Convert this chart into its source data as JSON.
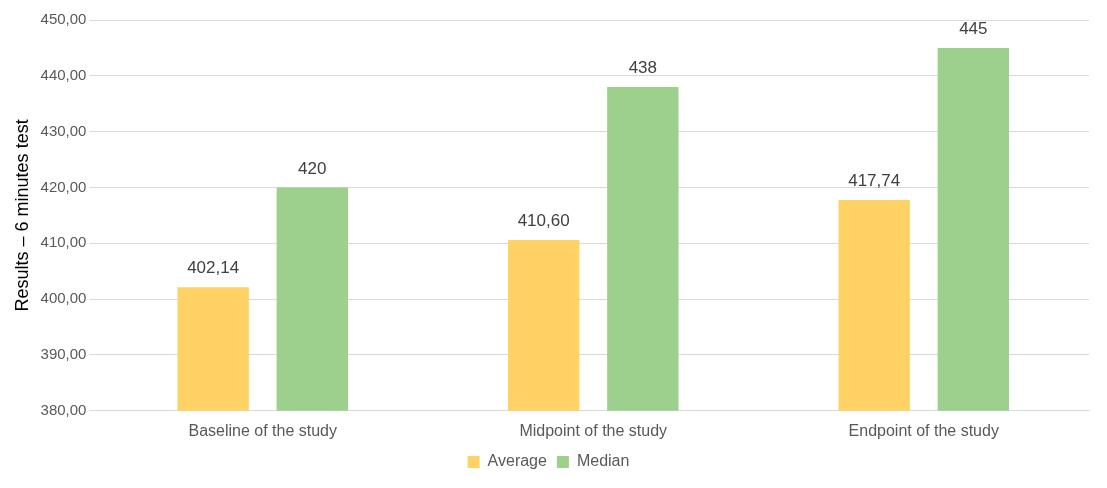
{
  "chart_data": {
    "type": "bar",
    "ylabel": "Results – 6 minutes test",
    "categories": [
      "Baseline of the study",
      "Midpoint of the study",
      "Endpoint of the study"
    ],
    "series": [
      {
        "name": "Average",
        "color": "#ffd265",
        "values": [
          402.14,
          410.6,
          417.74
        ],
        "value_labels": [
          "402,14",
          "410,60",
          "417,74"
        ]
      },
      {
        "name": "Median",
        "color": "#9dd08c",
        "values": [
          420,
          438,
          445
        ],
        "value_labels": [
          "420",
          "438",
          "445"
        ]
      }
    ],
    "ylim": [
      380,
      450
    ],
    "yticks": [
      {
        "value": 380,
        "label": "380,00"
      },
      {
        "value": 390,
        "label": "390,00"
      },
      {
        "value": 400,
        "label": "400,00"
      },
      {
        "value": 410,
        "label": "410,00"
      },
      {
        "value": 420,
        "label": "420,00"
      },
      {
        "value": 430,
        "label": "430,00"
      },
      {
        "value": 440,
        "label": "440,00"
      },
      {
        "value": 450,
        "label": "450,00"
      }
    ],
    "grid": "y",
    "legend": "bottom"
  }
}
